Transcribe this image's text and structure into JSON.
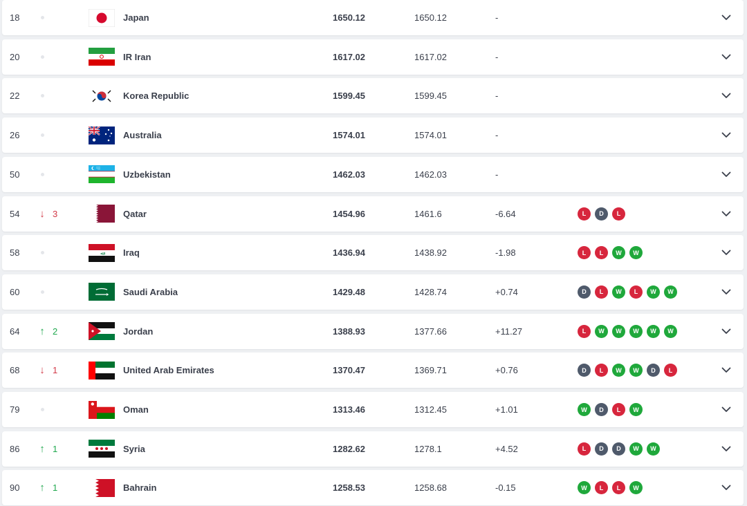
{
  "colors": {
    "loss": "#d7263d",
    "win": "#1fa83b",
    "draw": "#4f5a6b",
    "rank_down": "#d23a48",
    "rank_up": "#20a84e"
  },
  "rows": [
    {
      "rank": "18",
      "move": "none",
      "move_num": "",
      "name": "Japan",
      "flag": "flag-japan",
      "points": "1650.12",
      "prev_points": "1650.12",
      "diff": "-",
      "form": []
    },
    {
      "rank": "20",
      "move": "none",
      "move_num": "",
      "name": "IR Iran",
      "flag": "flag-iran",
      "points": "1617.02",
      "prev_points": "1617.02",
      "diff": "-",
      "form": []
    },
    {
      "rank": "22",
      "move": "none",
      "move_num": "",
      "name": "Korea Republic",
      "flag": "flag-korea",
      "points": "1599.45",
      "prev_points": "1599.45",
      "diff": "-",
      "form": []
    },
    {
      "rank": "26",
      "move": "none",
      "move_num": "",
      "name": "Australia",
      "flag": "flag-australia",
      "points": "1574.01",
      "prev_points": "1574.01",
      "diff": "-",
      "form": []
    },
    {
      "rank": "50",
      "move": "none",
      "move_num": "",
      "name": "Uzbekistan",
      "flag": "flag-uzbekistan",
      "points": "1462.03",
      "prev_points": "1462.03",
      "diff": "-",
      "form": []
    },
    {
      "rank": "54",
      "move": "down",
      "move_num": "3",
      "name": "Qatar",
      "flag": "flag-qatar",
      "points": "1454.96",
      "prev_points": "1461.6",
      "diff": "-6.64",
      "form": [
        "L",
        "D",
        "L"
      ]
    },
    {
      "rank": "58",
      "move": "none",
      "move_num": "",
      "name": "Iraq",
      "flag": "flag-iraq",
      "points": "1436.94",
      "prev_points": "1438.92",
      "diff": "-1.98",
      "form": [
        "L",
        "L",
        "W",
        "W"
      ]
    },
    {
      "rank": "60",
      "move": "none",
      "move_num": "",
      "name": "Saudi Arabia",
      "flag": "flag-saudi-arabia",
      "points": "1429.48",
      "prev_points": "1428.74",
      "diff": "+0.74",
      "form": [
        "D",
        "L",
        "W",
        "L",
        "W",
        "W"
      ]
    },
    {
      "rank": "64",
      "move": "up",
      "move_num": "2",
      "name": "Jordan",
      "flag": "flag-jordan",
      "points": "1388.93",
      "prev_points": "1377.66",
      "diff": "+11.27",
      "form": [
        "L",
        "W",
        "W",
        "W",
        "W",
        "W"
      ]
    },
    {
      "rank": "68",
      "move": "down",
      "move_num": "1",
      "name": "United Arab Emirates",
      "flag": "flag-uae",
      "points": "1370.47",
      "prev_points": "1369.71",
      "diff": "+0.76",
      "form": [
        "D",
        "L",
        "W",
        "W",
        "D",
        "L"
      ]
    },
    {
      "rank": "79",
      "move": "none",
      "move_num": "",
      "name": "Oman",
      "flag": "flag-oman",
      "points": "1313.46",
      "prev_points": "1312.45",
      "diff": "+1.01",
      "form": [
        "W",
        "D",
        "L",
        "W"
      ]
    },
    {
      "rank": "86",
      "move": "up",
      "move_num": "1",
      "name": "Syria",
      "flag": "flag-syria",
      "points": "1282.62",
      "prev_points": "1278.1",
      "diff": "+4.52",
      "form": [
        "L",
        "D",
        "D",
        "W",
        "W"
      ]
    },
    {
      "rank": "90",
      "move": "up",
      "move_num": "1",
      "name": "Bahrain",
      "flag": "flag-bahrain",
      "points": "1258.53",
      "prev_points": "1258.68",
      "diff": "-0.15",
      "form": [
        "W",
        "L",
        "L",
        "W"
      ]
    }
  ]
}
